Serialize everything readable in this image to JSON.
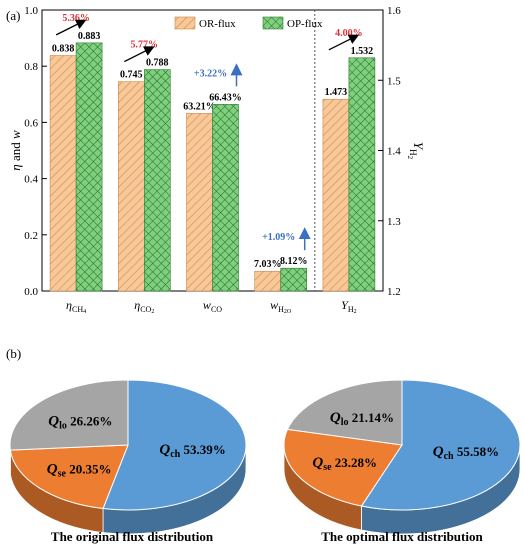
{
  "colors": {
    "or_fill": "#f6c89a",
    "or_hatch": "#d98a3e",
    "op_fill": "#7fcf7f",
    "op_hatch": "#1f6b1f",
    "red_label": "#e0303a",
    "blue_label": "#3a6fc4",
    "pie_blue": "#5b9bd5",
    "pie_orange": "#ed7d31",
    "pie_gray": "#a5a5a5"
  },
  "chart_data": [
    {
      "type": "bar",
      "panel_label": "(a)",
      "left_ylabel": {
        "main": "η",
        "mid": " and ",
        "var": "w"
      },
      "right_ylabel": {
        "main": "Y",
        "sub": "H",
        "subsub": "2"
      },
      "left_ylim": [
        0,
        1.0
      ],
      "left_ticks": [
        "0.0",
        "0.2",
        "0.4",
        "0.6",
        "0.8",
        "1.0"
      ],
      "right_ylim": [
        1.2,
        1.6
      ],
      "right_ticks": [
        "1.2",
        "1.3",
        "1.4",
        "1.5",
        "1.6"
      ],
      "categories": [
        {
          "main": "η",
          "sub": "CH",
          "subsub": "4",
          "italic": true
        },
        {
          "main": "η",
          "sub": "CO",
          "subsub": "2",
          "italic": true
        },
        {
          "main": "w",
          "sub": "CO",
          "subsub": "",
          "italic": true
        },
        {
          "main": "w",
          "sub": "H",
          "subsub": "2O",
          "italic": true
        },
        {
          "main": "Y",
          "sub": "H",
          "subsub": "2",
          "italic": true
        }
      ],
      "axis_of_category": [
        "left",
        "left",
        "left",
        "left",
        "right"
      ],
      "series": [
        {
          "name": "OR-flux",
          "values": [
            0.838,
            0.745,
            0.6321,
            0.0703,
            1.473
          ],
          "labels": [
            "0.838",
            "0.745",
            "63.21%",
            "7.03%",
            "1.473"
          ]
        },
        {
          "name": "OP-flux",
          "values": [
            0.883,
            0.788,
            0.6643,
            0.0812,
            1.532
          ],
          "labels": [
            "0.883",
            "0.788",
            "66.43%",
            "8.12%",
            "1.532"
          ]
        }
      ],
      "improvements": [
        {
          "category": 0,
          "text": "5.36%",
          "style": "red"
        },
        {
          "category": 1,
          "text": "5.77%",
          "style": "red"
        },
        {
          "category": 2,
          "text": "+3.22%",
          "style": "blue"
        },
        {
          "category": 3,
          "text": "+1.09%",
          "style": "blue"
        },
        {
          "category": 4,
          "text": "4.00%",
          "style": "red"
        }
      ],
      "legend_position": "top-right",
      "grid": false
    },
    {
      "type": "pie",
      "panel_label": "(b)",
      "title": "The original flux distribution",
      "slices": [
        {
          "label": "Q",
          "sub": "ch",
          "value": 53.39,
          "text": "53.39%",
          "color": "#5b9bd5"
        },
        {
          "label": "Q",
          "sub": "se",
          "value": 20.35,
          "text": "20.35%",
          "color": "#ed7d31"
        },
        {
          "label": "Q",
          "sub": "lo",
          "value": 26.26,
          "text": "26.26%",
          "color": "#a5a5a5"
        }
      ]
    },
    {
      "type": "pie",
      "title": "The optimal flux distribution",
      "slices": [
        {
          "label": "Q",
          "sub": "ch",
          "value": 55.58,
          "text": "55.58%",
          "color": "#5b9bd5"
        },
        {
          "label": "Q",
          "sub": "se",
          "value": 23.28,
          "text": "23.28%",
          "color": "#ed7d31"
        },
        {
          "label": "Q",
          "sub": "lo",
          "value": 21.14,
          "text": "21.14%",
          "color": "#a5a5a5"
        }
      ]
    }
  ]
}
